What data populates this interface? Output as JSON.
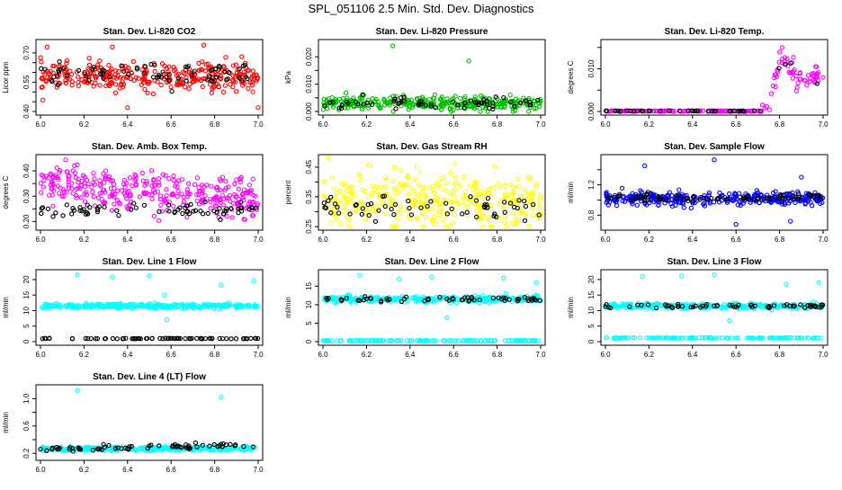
{
  "page_title": "SPL_051106  2.5 Min. Std. Dev. Diagnostics",
  "colors": {
    "black_points": "#000000",
    "background": "#ffffff"
  },
  "chart_data": [
    {
      "type": "scatter",
      "title": "Stan. Dev. Li-820 CO2",
      "ylabel": "Licor ppm",
      "xlim": [
        6.0,
        7.0
      ],
      "ylim": [
        0.4,
        0.75
      ],
      "xticks": [
        "6.0",
        "6.2",
        "6.4",
        "6.6",
        "6.8",
        "7.0"
      ],
      "yticks": [
        "0.40",
        "0.55",
        "0.70"
      ],
      "ytick_values": [
        0.4,
        0.55,
        0.7
      ],
      "series_color": "#ff0000",
      "extra_yticks": [
        0.45,
        0.5,
        0.6,
        0.65
      ],
      "series": [
        {
          "color": "#ff0000",
          "n": 320,
          "pattern": "band",
          "center": 0.58,
          "spread": 0.07
        },
        {
          "color": "#000000",
          "n": 70,
          "pattern": "band",
          "center": 0.59,
          "spread": 0.06
        }
      ],
      "outliers": [
        [
          6.33,
          0.73
        ],
        [
          6.75,
          0.74
        ],
        [
          7.0,
          0.42
        ],
        [
          6.4,
          0.42
        ],
        [
          6.03,
          0.73
        ]
      ]
    },
    {
      "type": "scatter",
      "title": "Stan. Dev. Li-820 Pressure",
      "ylabel": "kPa",
      "xlim": [
        6.0,
        7.0
      ],
      "ylim": [
        0.0,
        0.025
      ],
      "xticks": [
        "6.0",
        "6.2",
        "6.4",
        "6.6",
        "6.8",
        "7.0"
      ],
      "yticks": [
        "0.000",
        "0.010",
        "0.020"
      ],
      "ytick_values": [
        0.0,
        0.01,
        0.02
      ],
      "extra_yticks": [
        0.005,
        0.015
      ],
      "series": [
        {
          "color": "#00c000",
          "n": 320,
          "pattern": "band",
          "center": 0.003,
          "spread": 0.0025
        },
        {
          "color": "#000000",
          "n": 60,
          "pattern": "band",
          "center": 0.003,
          "spread": 0.002
        }
      ],
      "outliers": [
        [
          6.32,
          0.024
        ],
        [
          6.67,
          0.0185
        ]
      ]
    },
    {
      "type": "scatter",
      "title": "Stan. Dev. Li-820 Temp.",
      "ylabel": "degrees C",
      "xlim": [
        6.0,
        7.0
      ],
      "ylim": [
        0.0,
        0.016
      ],
      "xticks": [
        "6.0",
        "6.2",
        "6.4",
        "6.6",
        "6.8",
        "7.0"
      ],
      "yticks": [
        "0.000",
        "0.010"
      ],
      "ytick_values": [
        0.0,
        0.01
      ],
      "extra_yticks": [
        0.005,
        0.015
      ],
      "series": [
        {
          "color": "#ff00ff",
          "n": 200,
          "pattern": "temp",
          "center": 0.0,
          "spread": 0.001
        },
        {
          "color": "#000000",
          "n": 40,
          "pattern": "temp",
          "center": 0.0,
          "spread": 0.001
        }
      ],
      "outliers": []
    },
    {
      "type": "scatter",
      "title": "Stan. Dev. Amb. Box Temp.",
      "ylabel": "degrees C",
      "xlim": [
        6.0,
        7.0
      ],
      "ylim": [
        0.18,
        0.45
      ],
      "xticks": [
        "6.0",
        "6.2",
        "6.4",
        "6.6",
        "6.8",
        "7.0"
      ],
      "yticks": [
        "0.20",
        "0.30",
        "0.40"
      ],
      "ytick_values": [
        0.2,
        0.3,
        0.4
      ],
      "extra_yticks": [
        0.25,
        0.35
      ],
      "series": [
        {
          "color": "#ff00ff",
          "n": 330,
          "pattern": "decline",
          "center": 0.32,
          "spread": 0.08
        },
        {
          "color": "#000000",
          "n": 70,
          "pattern": "band",
          "center": 0.245,
          "spread": 0.025
        }
      ],
      "outliers": []
    },
    {
      "type": "scatter",
      "title": "Stan. Dev. Gas Stream RH",
      "ylabel": "percent",
      "xlim": [
        6.0,
        7.0
      ],
      "ylim": [
        0.25,
        0.48
      ],
      "xticks": [
        "6.0",
        "6.2",
        "6.4",
        "6.6",
        "6.8",
        "7.0"
      ],
      "yticks": [
        "0.25",
        "0.35",
        "0.45"
      ],
      "ytick_values": [
        0.25,
        0.35,
        0.45
      ],
      "extra_yticks": [
        0.3,
        0.4
      ],
      "series": [
        {
          "color": "#ffff00",
          "n": 330,
          "pattern": "band",
          "center": 0.34,
          "spread": 0.09
        },
        {
          "color": "#000000",
          "n": 60,
          "pattern": "band",
          "center": 0.32,
          "spread": 0.04
        }
      ],
      "outliers": []
    },
    {
      "type": "scatter",
      "title": "Stan. Dev. Sample Flow",
      "ylabel": "ml/min",
      "xlim": [
        6.0,
        7.0
      ],
      "ylim": [
        0.65,
        1.55
      ],
      "xticks": [
        "6.0",
        "6.2",
        "6.4",
        "6.6",
        "6.8",
        "7.0"
      ],
      "yticks": [
        "0.8",
        "1.2"
      ],
      "ytick_values": [
        0.8,
        1.2
      ],
      "extra_yticks": [
        1.0,
        1.4
      ],
      "series": [
        {
          "color": "#0000ff",
          "n": 340,
          "pattern": "band",
          "center": 1.02,
          "spread": 0.08
        },
        {
          "color": "#000000",
          "n": 70,
          "pattern": "band",
          "center": 1.03,
          "spread": 0.05
        }
      ],
      "outliers": [
        [
          6.18,
          1.45
        ],
        [
          6.5,
          1.53
        ],
        [
          6.9,
          1.3
        ],
        [
          6.6,
          0.68
        ],
        [
          6.85,
          0.72
        ]
      ]
    },
    {
      "type": "scatter",
      "title": "Stan. Dev. Line 1 Flow",
      "ylabel": "ml/min",
      "xlim": [
        6.0,
        7.0
      ],
      "ylim": [
        0,
        22
      ],
      "xticks": [
        "6.0",
        "6.2",
        "6.4",
        "6.6",
        "6.8",
        "7.0"
      ],
      "yticks": [
        "0",
        "5",
        "10",
        "15",
        "20"
      ],
      "ytick_values": [
        0,
        5,
        10,
        15,
        20
      ],
      "extra_yticks": [],
      "series": [
        {
          "color": "#00ffff",
          "n": 300,
          "pattern": "band",
          "center": 11.5,
          "spread": 0.7
        },
        {
          "color": "#000000",
          "n": 70,
          "pattern": "band",
          "center": 1.0,
          "spread": 0.1
        }
      ],
      "outliers": [
        [
          6.17,
          21.5
        ],
        [
          6.33,
          20.8
        ],
        [
          6.5,
          21.2
        ],
        [
          6.83,
          18.2
        ],
        [
          6.98,
          19.5
        ],
        [
          6.58,
          7.0
        ],
        [
          6.57,
          15.0
        ]
      ]
    },
    {
      "type": "scatter",
      "title": "Stan. Dev. Line 2 Flow",
      "ylabel": "ml/min",
      "xlim": [
        6.0,
        7.0
      ],
      "ylim": [
        0,
        18.5
      ],
      "xticks": [
        "6.0",
        "6.2",
        "6.4",
        "6.6",
        "6.8",
        "7.0"
      ],
      "yticks": [
        "0",
        "5",
        "10",
        "15"
      ],
      "ytick_values": [
        0,
        5,
        10,
        15
      ],
      "extra_yticks": [],
      "series": [
        {
          "color": "#00ffff",
          "n": 300,
          "pattern": "band",
          "center": 11.5,
          "spread": 0.8
        },
        {
          "color": "#00ffff",
          "n": 120,
          "pattern": "band",
          "center": 0.3,
          "spread": 0.05
        },
        {
          "color": "#000000",
          "n": 60,
          "pattern": "band",
          "center": 11.5,
          "spread": 0.7
        }
      ],
      "outliers": [
        [
          6.17,
          18.0
        ],
        [
          6.35,
          17.0
        ],
        [
          6.5,
          17.5
        ],
        [
          6.83,
          17.2
        ],
        [
          6.98,
          16.0
        ],
        [
          6.57,
          6.5
        ]
      ]
    },
    {
      "type": "scatter",
      "title": "Stan. Dev. Line 3 Flow",
      "ylabel": "ml/min",
      "xlim": [
        6.0,
        7.0
      ],
      "ylim": [
        0,
        22
      ],
      "xticks": [
        "6.0",
        "6.2",
        "6.4",
        "6.6",
        "6.8",
        "7.0"
      ],
      "yticks": [
        "0",
        "5",
        "10",
        "15",
        "20"
      ],
      "ytick_values": [
        0,
        5,
        10,
        15,
        20
      ],
      "extra_yticks": [],
      "series": [
        {
          "color": "#00ffff",
          "n": 300,
          "pattern": "band",
          "center": 11.5,
          "spread": 0.8
        },
        {
          "color": "#00ffff",
          "n": 120,
          "pattern": "band",
          "center": 1.2,
          "spread": 0.1
        },
        {
          "color": "#000000",
          "n": 60,
          "pattern": "band",
          "center": 11.5,
          "spread": 0.6
        }
      ],
      "outliers": [
        [
          6.17,
          21.0
        ],
        [
          6.35,
          21.2
        ],
        [
          6.5,
          21.5
        ],
        [
          6.83,
          18.5
        ],
        [
          6.98,
          19.0
        ],
        [
          6.57,
          6.8
        ]
      ]
    },
    {
      "type": "scatter",
      "title": "Stan. Dev. Line 4 (LT) Flow",
      "ylabel": "ml/min",
      "xlim": [
        6.0,
        7.0
      ],
      "ylim": [
        0.15,
        1.15
      ],
      "xticks": [
        "6.0",
        "6.2",
        "6.4",
        "6.6",
        "6.8",
        "7.0"
      ],
      "yticks": [
        "0.2",
        "0.6",
        "1.0"
      ],
      "ytick_values": [
        0.2,
        0.6,
        1.0
      ],
      "extra_yticks": [
        0.4,
        0.8
      ],
      "series": [
        {
          "color": "#00ffff",
          "n": 300,
          "pattern": "band",
          "center": 0.27,
          "spread": 0.03
        },
        {
          "color": "#000000",
          "n": 70,
          "pattern": "rising",
          "center": 0.26,
          "spread": 0.02
        }
      ],
      "outliers": [
        [
          6.17,
          1.12
        ],
        [
          6.83,
          1.02
        ]
      ]
    }
  ]
}
